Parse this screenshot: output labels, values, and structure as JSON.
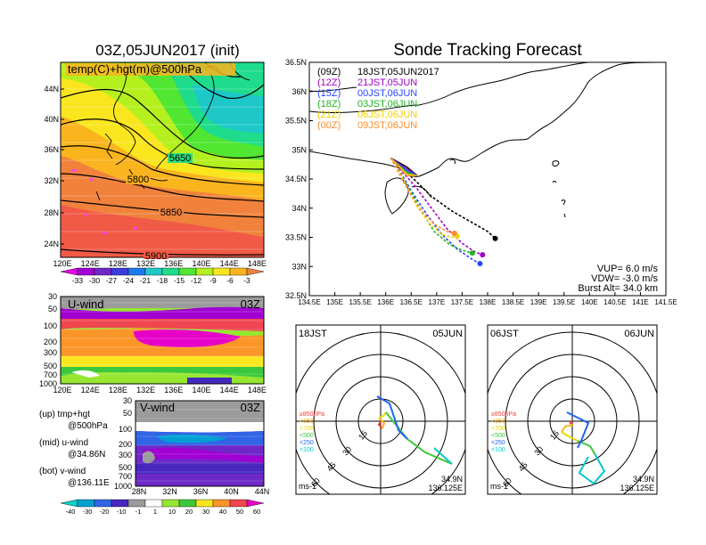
{
  "left": {
    "title": "03Z,05JUN2017 (init)",
    "map_label": "temp(C)+hgt(m)@500hPa",
    "lon_ticks": [
      "120E",
      "124E",
      "128E",
      "132E",
      "136E",
      "140E",
      "144E",
      "148E"
    ],
    "lat_ticks": [
      "44N",
      "40N",
      "36N",
      "32N",
      "28N",
      "24N"
    ],
    "contour_labels": [
      "5650",
      "5800",
      "5850",
      "5900"
    ],
    "temp_scale": [
      "-33",
      "-30",
      "-27",
      "-24",
      "-21",
      "-18",
      "-15",
      "-12",
      "-9",
      "-6",
      "-3"
    ],
    "temp_colors": [
      "#e600e6",
      "#a000d2",
      "#6e28c8",
      "#3c3cdc",
      "#1e78f0",
      "#1ec8c8",
      "#1edc8c",
      "#50e632",
      "#b4f01e",
      "#fae61e",
      "#fab41e",
      "#f0823c"
    ],
    "uwind": {
      "label": "U-wind",
      "time": "03Z",
      "p_ticks": [
        "30",
        "50",
        "100",
        "200",
        "300",
        "500",
        "700",
        "1000"
      ],
      "lon_ticks": [
        "120E",
        "124E",
        "128E",
        "132E",
        "136E",
        "140E",
        "144E",
        "148E"
      ]
    },
    "vwind": {
      "label": "V-wind",
      "time": "03Z",
      "p_ticks": [
        "30",
        "50",
        "100",
        "200",
        "300",
        "500",
        "700",
        "1000"
      ],
      "lat_ticks": [
        "28N",
        "32N",
        "36N",
        "40N",
        "44N"
      ]
    },
    "wind_scale": [
      "-40",
      "-30",
      "-20",
      "-10",
      "-1",
      "1",
      "10",
      "20",
      "30",
      "40",
      "50",
      "60"
    ],
    "wind_colors": [
      "#00d2c8",
      "#00a0d2",
      "#3264e6",
      "#4628be",
      "#9b9b9b",
      "#ffffff",
      "#96e632",
      "#3cc83c",
      "#fae61e",
      "#fa9628",
      "#f04650",
      "#e600c8"
    ],
    "notes": [
      {
        "title": "(up) tmp+hgt",
        "sub": "@500hPa"
      },
      {
        "title": "(mid) u-wind",
        "sub": "@34.86N"
      },
      {
        "title": "(bot) v-wind",
        "sub": "@136.11E"
      }
    ]
  },
  "right": {
    "title": "Sonde Tracking Forecast",
    "lon_ticks": [
      "134.5E",
      "135E",
      "135.5E",
      "136E",
      "136.5E",
      "137E",
      "137.5E",
      "138E",
      "138.5E",
      "139E",
      "139.5E",
      "140E",
      "140.5E",
      "141E",
      "141.5E"
    ],
    "lat_ticks": [
      "36.5N",
      "36N",
      "35.5N",
      "35N",
      "34.5N",
      "34N",
      "33.5N",
      "33N",
      "32.5N"
    ],
    "legend": [
      {
        "code": "(09Z)",
        "time": "18JST,05JUN2017",
        "color": "#000000"
      },
      {
        "code": "(12Z)",
        "time": "21JST,05JUN",
        "color": "#a000c8"
      },
      {
        "code": "(15Z)",
        "time": "00JST,06JUN",
        "color": "#2846ff"
      },
      {
        "code": "(18Z)",
        "time": "03JST,06JUN",
        "color": "#22b422"
      },
      {
        "code": "(21Z)",
        "time": "06JST,06JUN",
        "color": "#f0d200"
      },
      {
        "code": "(00Z)",
        "time": "09JST,06JUN",
        "color": "#ff8c28"
      }
    ],
    "params": [
      "VUP= 6.0 m/s",
      "VDW= -3.0 m/s",
      "Burst Alt= 34.0 km"
    ]
  },
  "hodographs": [
    {
      "label": "18JST",
      "date": "05JUN",
      "unit": "ms-1",
      "lat": "34.9N",
      "lon": "136.125E"
    },
    {
      "label": "06JST",
      "date": "06JUN",
      "unit": "ms-1",
      "lat": "34.9N",
      "lon": "136.125E"
    }
  ],
  "hodo_rings": [
    "15",
    "30",
    "45",
    "60"
  ],
  "hodo_levels": [
    {
      "label": "≥850hPa",
      "color": "#f03c3c"
    },
    {
      "label": "<850",
      "color": "#fab41e"
    },
    {
      "label": "<700",
      "color": "#e6dc00"
    },
    {
      "label": "<500",
      "color": "#3cc83c"
    },
    {
      "label": "<250",
      "color": "#1e64f0"
    },
    {
      "label": "<100",
      "color": "#00c8c8"
    }
  ],
  "chart_data": [
    {
      "type": "heatmap",
      "title": "03Z,05JUN2017 (init)",
      "label": "temp(C)+hgt(m)@500hPa",
      "xlim": [
        120,
        150
      ],
      "ylim": [
        22,
        47
      ],
      "contour_values": [
        5650,
        5800,
        5850,
        5900
      ]
    },
    {
      "type": "heatmap",
      "label": "U-wind",
      "xlim": [
        120,
        150
      ],
      "ylevels": [
        30,
        50,
        100,
        200,
        300,
        500,
        700,
        1000
      ]
    },
    {
      "type": "heatmap",
      "label": "V-wind",
      "xlim": [
        28,
        44
      ],
      "ylevels": [
        30,
        50,
        100,
        200,
        300,
        500,
        700,
        1000
      ]
    },
    {
      "type": "line",
      "title": "Sonde Tracking Forecast",
      "xlim": [
        134.5,
        141.5
      ],
      "ylim": [
        32.5,
        36.5
      ],
      "series": [
        {
          "name": "(09Z) 18JST,05JUN2017",
          "x": [
            136.1,
            136.3,
            136.55,
            136.9,
            137.3,
            137.7,
            138.0,
            138.15
          ],
          "y": [
            34.86,
            34.7,
            34.5,
            34.2,
            33.95,
            33.75,
            33.6,
            33.48
          ]
        },
        {
          "name": "(12Z) 21JST,05JUN",
          "x": [
            136.1,
            136.35,
            136.6,
            136.9,
            137.2,
            137.5,
            137.75,
            137.9
          ],
          "y": [
            34.86,
            34.6,
            34.35,
            34.0,
            33.65,
            33.4,
            33.25,
            33.2
          ]
        },
        {
          "name": "(15Z) 00JST,06JUN",
          "x": [
            136.1,
            136.3,
            136.5,
            136.8,
            137.1,
            137.4,
            137.7,
            137.85
          ],
          "y": [
            34.86,
            34.6,
            34.3,
            33.9,
            33.55,
            33.3,
            33.12,
            33.05
          ]
        },
        {
          "name": "(18Z) 03JST,06JUN",
          "x": [
            136.1,
            136.25,
            136.45,
            136.7,
            136.95,
            137.25,
            137.5,
            137.7
          ],
          "y": [
            34.86,
            34.65,
            34.35,
            33.95,
            33.6,
            33.38,
            33.28,
            33.23
          ]
        },
        {
          "name": "(21Z) 06JST,06JUN",
          "x": [
            136.1,
            136.25,
            136.4,
            136.6,
            136.85,
            137.1,
            137.3,
            137.4
          ],
          "y": [
            34.86,
            34.65,
            34.4,
            34.05,
            33.75,
            33.55,
            33.5,
            33.52
          ]
        },
        {
          "name": "(00Z) 09JST,06JUN",
          "x": [
            136.1,
            136.2,
            136.35,
            136.55,
            136.75,
            137.0,
            137.2,
            137.35
          ],
          "y": [
            34.86,
            34.7,
            34.45,
            34.15,
            33.9,
            33.7,
            33.6,
            33.57
          ]
        }
      ]
    }
  ]
}
